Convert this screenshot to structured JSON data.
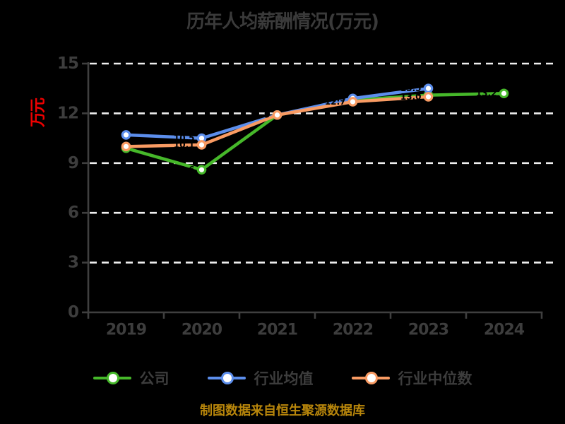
{
  "title": "历年人均薪酬情况(万元)",
  "y_axis_label": "万元",
  "footer_note": "制图数据来自恒生聚源数据库",
  "palette": {
    "background": "#000000",
    "title_text": "#3a3a3a",
    "axis_text": "#3d3d3d",
    "axis_line": "#3f3f3f",
    "gridline": "#efefef",
    "y_label_red": "#ee0000",
    "footer_gold": "#b8860b",
    "point_label": "#000000",
    "marker_fill": "#ffffff"
  },
  "chart_data": {
    "type": "line",
    "title": "历年人均薪酬情况(万元)",
    "xlabel": "",
    "ylabel": "万元",
    "categories": [
      "2019",
      "2020",
      "2021",
      "2022",
      "2023",
      "2024"
    ],
    "series": [
      {
        "name": "公司",
        "color": "#46b82a",
        "values": [
          9.9,
          8.6,
          11.9,
          12.8,
          13.1,
          13.2
        ]
      },
      {
        "name": "行业均值",
        "color": "#5c8eec",
        "values": [
          10.7,
          10.5,
          11.9,
          12.9,
          13.5,
          null
        ]
      },
      {
        "name": "行业中位数",
        "color": "#f99b63",
        "values": [
          10.0,
          10.1,
          11.9,
          12.7,
          13.0,
          null
        ]
      }
    ],
    "ylim": [
      0,
      15
    ],
    "yticks": [
      0,
      3,
      6,
      9,
      12,
      15
    ],
    "grid": "horizontal-dashed",
    "legend_position": "bottom",
    "source_note": "制图数据来自恒生聚源数据库"
  }
}
